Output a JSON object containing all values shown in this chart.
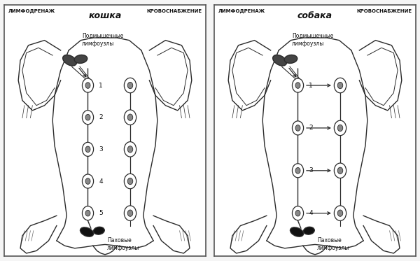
{
  "fig_width": 6.0,
  "fig_height": 3.73,
  "dpi": 100,
  "bg_color": "#f5f5f5",
  "panels": [
    {
      "id": "cat",
      "title_center": "кошка",
      "title_left": "ЛИМФОДРЕНАЖ",
      "title_right": "КРОВОСНАБЖЕНИЕ",
      "label_axillary": "Подмышечные\nлимфоузлы",
      "label_inguinal": "Паховые\nлимфоузлы",
      "numbers": [
        "1",
        "2",
        "3",
        "4",
        "5"
      ],
      "has_cross_arrows": false
    },
    {
      "id": "dog",
      "title_center": "собака",
      "title_left": "ЛИМФОДРЕНАЖ",
      "title_right": "КРОВОСНАБЖЕНИЕ",
      "label_axillary": "Подмышечные\nлимфоузлы",
      "label_inguinal": "Паховые\nлимфоузлы",
      "numbers": [
        "1",
        "2",
        "3",
        "4"
      ],
      "has_cross_arrows": true
    }
  ],
  "lc": "#2a2a2a",
  "tc": "#111111",
  "node_face": "#ffffff",
  "node_inner": "#aaaaaa",
  "node_edge": "#2a2a2a"
}
